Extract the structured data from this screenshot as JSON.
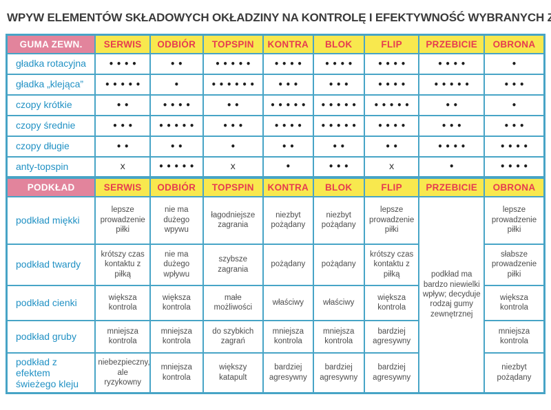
{
  "title": "WPYW ELEMENTÓW SKŁADOWYCH OKŁADZINY NA KONTROLĘ I EFEKTYWNOŚĆ WYBRANYCH ZAGRAŃ",
  "columns": [
    "SERWIS",
    "ODBIÓR",
    "TOPSPIN",
    "KONTRA",
    "BLOK",
    "FLIP",
    "PRZEBICIE",
    "OBRONA"
  ],
  "outer_rubber": {
    "header": "GUMA ZEWN.",
    "rows": [
      {
        "label": "gładka rotacyjna",
        "cells": [
          "••••",
          "••",
          "•••••",
          "••••",
          "••••",
          "••••",
          "••••",
          "•"
        ]
      },
      {
        "label": "gładka „klejąca”",
        "cells": [
          "•••••",
          "•",
          "••••••",
          "•••",
          "•••",
          "••••",
          "•••••",
          "•••"
        ]
      },
      {
        "label": "czopy krótkie",
        "cells": [
          "••",
          "••••",
          "••",
          "•••••",
          "•••••",
          "•••••",
          "••",
          "•"
        ]
      },
      {
        "label": "czopy średnie",
        "cells": [
          "•••",
          "•••••",
          "•••",
          "••••",
          "•••••",
          "••••",
          "•••",
          "•••"
        ]
      },
      {
        "label": "czopy długie",
        "cells": [
          "••",
          "••",
          "•",
          "••",
          "••",
          "••",
          "••••",
          "••••"
        ]
      },
      {
        "label": "anty-topspin",
        "cells": [
          "x",
          "•••••",
          "x",
          "•",
          "•••",
          "x",
          "•",
          "••••"
        ]
      }
    ]
  },
  "sponge": {
    "header": "PODKŁAD",
    "merged_column": "PRZEBICIE",
    "merged_note": "podkład ma bardzo niewielki wpływ; decyduje rodzaj gumy zewnętrznej",
    "rows": [
      {
        "label": "podkład miękki",
        "cells": [
          "lepsze prowadzenie piłki",
          "nie ma dużego wpywu",
          "łagodniejsze zagrania",
          "niezbyt pożądany",
          "niezbyt pożądany",
          "lepsze prowadzenie piłki",
          "lepsze prowadzenie piłki"
        ]
      },
      {
        "label": "podkład twardy",
        "cells": [
          "krótszy czas kontaktu z piłką",
          "nie ma dużego wpływu",
          "szybsze zagrania",
          "pożądany",
          "pożądany",
          "krótszy czas kontaktu z piłką",
          "słabsze prowadzenie piłki"
        ]
      },
      {
        "label": "podkład cienki",
        "cells": [
          "większa kontrola",
          "większa kontrola",
          "małe możliwości",
          "właściwy",
          "właściwy",
          "większa kontrola",
          "większa kontrola"
        ]
      },
      {
        "label": "podkład gruby",
        "cells": [
          "mniejsza kontrola",
          "mniejsza kontrola",
          "do szybkich zagrań",
          "mniejsza kontrola",
          "mniejsza kontrola",
          "bardziej agresywny",
          "mniejsza kontrola"
        ]
      },
      {
        "label": "podkład z efektem świeżego kleju",
        "cells": [
          "niebezpieczny, ale ryzykowny",
          "mniejsza kontrola",
          "większy katapult",
          "bardziej agresywny",
          "bardziej agresywny",
          "bardziej agresywny",
          "niezbyt pożądany"
        ]
      }
    ]
  },
  "colors": {
    "header_pink": "#e2849c",
    "header_yellow": "#f8e84e",
    "header_red_text": "#e63b50",
    "grid_border": "#47a4c6",
    "row_label_blue": "#2191c4",
    "cell_text": "#4c4c4c"
  }
}
